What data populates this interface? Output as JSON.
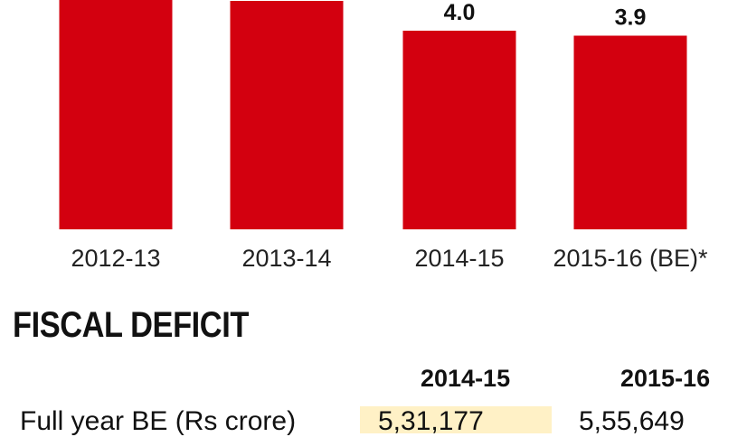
{
  "chart_data": {
    "type": "bar",
    "categories": [
      "2012-13",
      "2013-14",
      "2014-15",
      "2015-16 (BE)*"
    ],
    "values": [
      4.8,
      4.6,
      4.0,
      3.9
    ],
    "data_labels": [
      "",
      "",
      "4.0",
      "3.9"
    ],
    "bar_color": "#d3000f",
    "grid": false
  },
  "section": {
    "title": "FISCAL DEFICIT",
    "col_2014": "2014-15",
    "col_2015": "2015-16",
    "row_label": "Full year BE (Rs crore)",
    "val_2014": "5,31,177",
    "val_2015": "5,55,649",
    "highlight_color": "#fff1c6"
  }
}
